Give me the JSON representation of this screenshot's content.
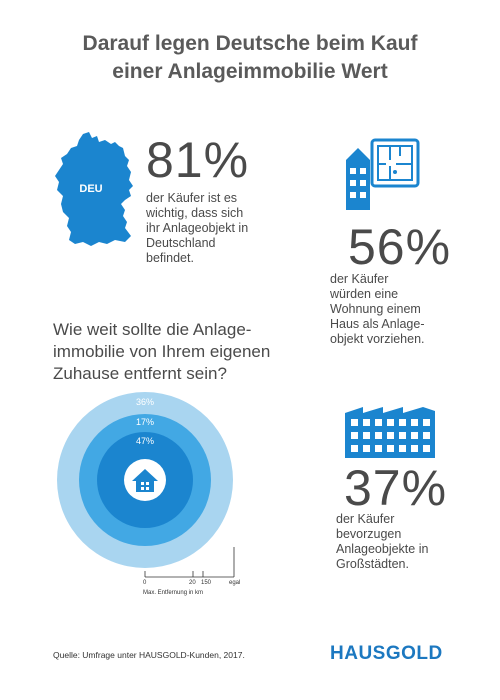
{
  "title": {
    "line1": "Darauf legen Deutsche beim Kauf",
    "line2": "einer Anlageimmobilie Wert"
  },
  "germany": {
    "label": "DEU",
    "percent": "81%",
    "text": [
      "der Käufer ist es",
      "wichtig, dass sich",
      "ihr Anlageobjekt in",
      "Deutschland",
      "befindet."
    ]
  },
  "apartment": {
    "percent": "56%",
    "text": [
      "der Käufer",
      "würden eine",
      "Wohnung einem",
      "Haus als Anlage-",
      "objekt vorziehen."
    ]
  },
  "question": {
    "lines": [
      "Wie weit sollte die Anlage-",
      "immobilie von Ihrem eigenen",
      "Zuhause entfernt sein?"
    ]
  },
  "distance_chart": {
    "rings": [
      {
        "value": "36%",
        "color": "#a9d5f0"
      },
      {
        "value": "17%",
        "color": "#42a8e4"
      },
      {
        "value": "47%",
        "color": "#1b85cf"
      }
    ],
    "axis": {
      "ticks": [
        "0",
        "20",
        "150",
        "egal"
      ],
      "label": "Max. Entfernung in km"
    }
  },
  "city": {
    "percent": "37%",
    "text": [
      "der Käufer",
      "bevorzugen",
      "Anlageobjekte in",
      "Großstädten."
    ]
  },
  "source": "Quelle: Umfrage unter HAUSGOLD-Kunden, 2017.",
  "logo": "HAUSGOLD",
  "colors": {
    "primary": "#1b85cf",
    "light": "#a9d5f0",
    "mid": "#42a8e4",
    "text": "#4a4a4a"
  }
}
